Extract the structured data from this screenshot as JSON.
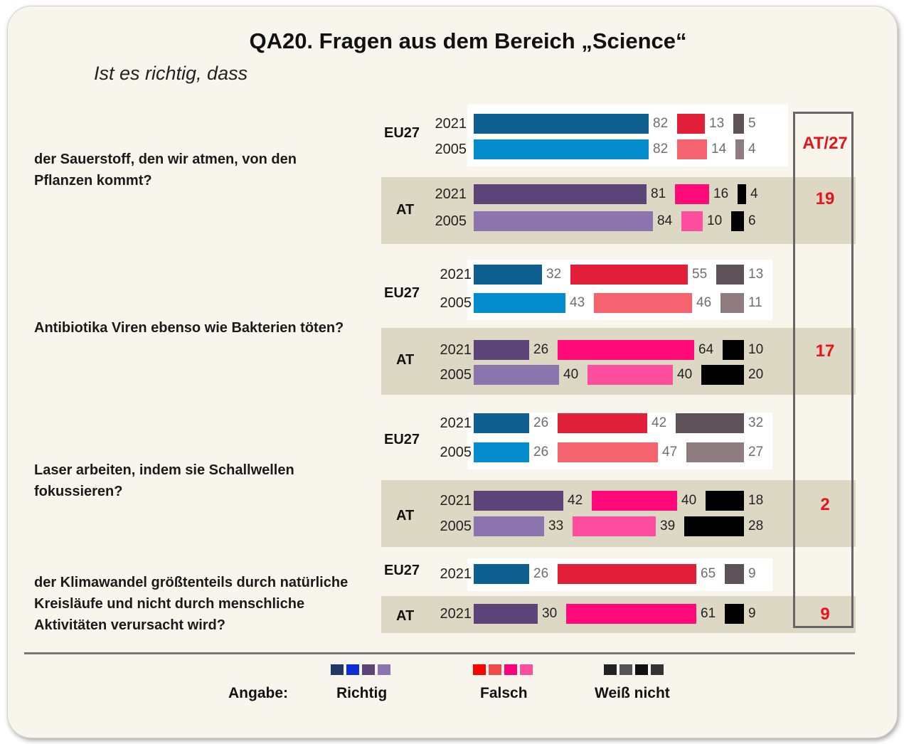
{
  "title": "QA20.  Fragen aus dem Bereich „Science“",
  "subtitle": "Ist es richtig, dass",
  "at27_header": "AT/27",
  "legend": {
    "prefix": "Angabe:",
    "richtig": "Richtig",
    "falsch": "Falsch",
    "weiss": "Weiß nicht",
    "richtig_colors": [
      "#1f3864",
      "#0b2ed8",
      "#5c4378",
      "#8c75ae"
    ],
    "falsch_colors": [
      "#ff0000",
      "#f24a4a",
      "#ff007a",
      "#ff4da0"
    ],
    "weiss_colors": [
      "#222222",
      "#555555",
      "#111111",
      "#333333"
    ]
  },
  "colors": {
    "eu_2021": [
      "#0c5f8e",
      "#e21f38",
      "#5e5157"
    ],
    "eu_2005": [
      "#048ccc",
      "#f4636e",
      "#8f7c80"
    ],
    "at_2021": [
      "#5c4378",
      "#ff0a78",
      "#000000"
    ],
    "at_2005": [
      "#8c75ae",
      "#ff4da0",
      "#000000"
    ]
  },
  "chart_data": {
    "type": "bar",
    "segments": [
      "Richtig",
      "Falsch",
      "Weiß nicht"
    ],
    "questions": [
      {
        "label_lines": [
          "der Sauerstoff, den wir atmen, von  den",
          "Pflanzen kommt?"
        ],
        "at27": "19",
        "EU27": {
          "2021": [
            82,
            13,
            5
          ],
          "2005": [
            82,
            14,
            4
          ]
        },
        "AT": {
          "2021": [
            81,
            16,
            4
          ],
          "2005": [
            84,
            10,
            6
          ]
        }
      },
      {
        "label_lines": [
          "Antibiotika Viren ebenso wie Bakterien töten?"
        ],
        "at27": "17",
        "EU27": {
          "2021": [
            32,
            55,
            13
          ],
          "2005": [
            43,
            46,
            11
          ]
        },
        "AT": {
          "2021": [
            26,
            64,
            10
          ],
          "2005": [
            40,
            40,
            20
          ]
        }
      },
      {
        "label_lines": [
          "Laser arbeiten, indem sie Schallwellen",
          "fokussieren?"
        ],
        "at27": "2",
        "EU27": {
          "2021": [
            26,
            42,
            32
          ],
          "2005": [
            26,
            47,
            27
          ]
        },
        "AT": {
          "2021": [
            42,
            40,
            18
          ],
          "2005": [
            33,
            39,
            28
          ]
        }
      },
      {
        "label_lines": [
          "der Klimawandel größtenteils durch natürliche",
          "Kreisläufe und nicht durch menschliche",
          "Aktivitäten verursacht wird?"
        ],
        "at27": "9",
        "EU27": {
          "2021": [
            26,
            65,
            9
          ]
        },
        "AT": {
          "2021": [
            30,
            61,
            9
          ]
        }
      }
    ]
  },
  "group_labels": {
    "eu": "EU27",
    "at": "AT"
  },
  "year_labels": {
    "y2021": "2021",
    "y2005": "2005"
  }
}
